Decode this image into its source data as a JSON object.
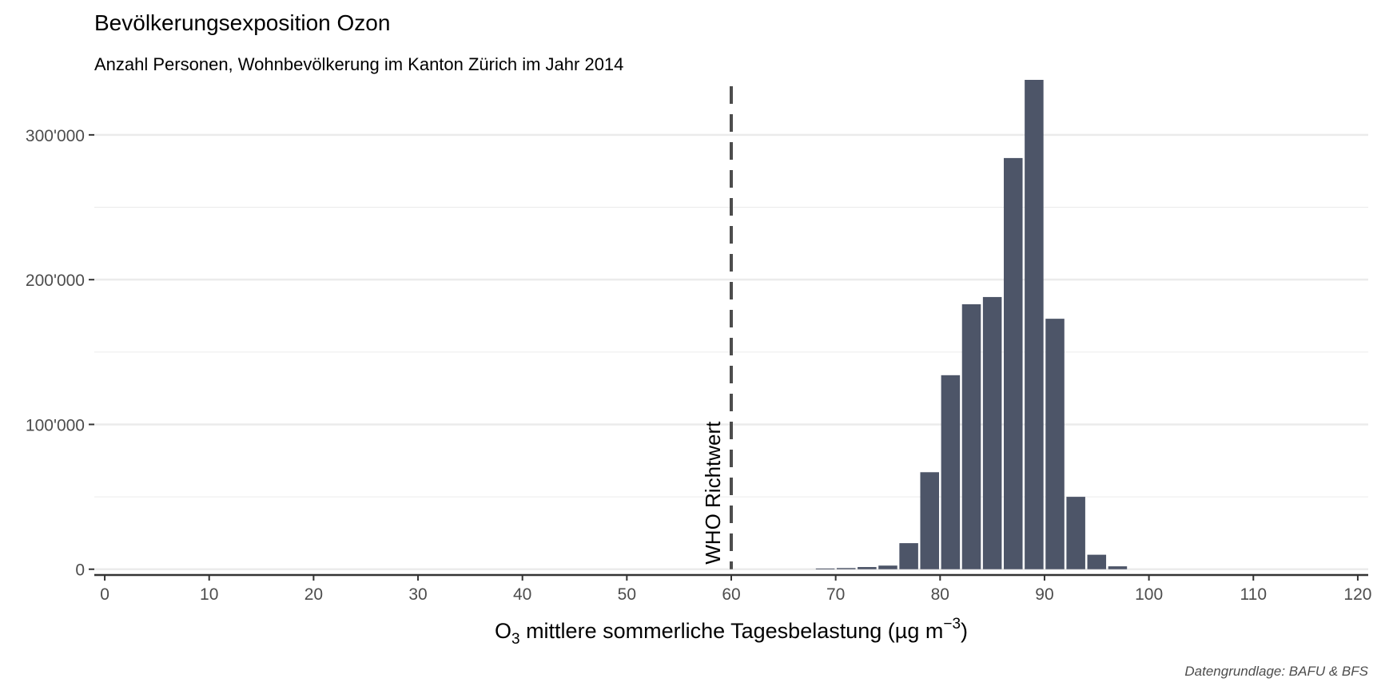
{
  "chart_data": {
    "type": "bar",
    "title": "Bevölkerungsexposition Ozon",
    "subtitle": "Anzahl Personen, Wohnbevölkerung im Kanton Zürich im Jahr 2014",
    "xlabel": {
      "main": "O",
      "sub": "3",
      "rest": " mittlere sommerliche Tagesbelastung (µg m",
      "sup": "−3",
      "close": ")"
    },
    "caption": "Datengrundlage: BAFU & BFS",
    "xlim": [
      -1,
      121
    ],
    "ylim": [
      -4000,
      338000
    ],
    "bin_width": 2,
    "x_ticks": [
      {
        "value": 0,
        "label": "0"
      },
      {
        "value": 10,
        "label": "10"
      },
      {
        "value": 20,
        "label": "20"
      },
      {
        "value": 30,
        "label": "30"
      },
      {
        "value": 40,
        "label": "40"
      },
      {
        "value": 50,
        "label": "50"
      },
      {
        "value": 60,
        "label": "60"
      },
      {
        "value": 70,
        "label": "70"
      },
      {
        "value": 80,
        "label": "80"
      },
      {
        "value": 90,
        "label": "90"
      },
      {
        "value": 100,
        "label": "100"
      },
      {
        "value": 110,
        "label": "110"
      },
      {
        "value": 120,
        "label": "120"
      }
    ],
    "y_ticks": [
      {
        "value": 0,
        "label": "0"
      },
      {
        "value": 100000,
        "label": "100'000"
      },
      {
        "value": 200000,
        "label": "200'000"
      },
      {
        "value": 300000,
        "label": "300'000"
      }
    ],
    "y_minor_ticks": [
      50000,
      150000,
      250000
    ],
    "bars": [
      {
        "x": 69,
        "y": 500
      },
      {
        "x": 71,
        "y": 800
      },
      {
        "x": 73,
        "y": 1500
      },
      {
        "x": 75,
        "y": 2500
      },
      {
        "x": 77,
        "y": 18000
      },
      {
        "x": 79,
        "y": 67000
      },
      {
        "x": 81,
        "y": 134000
      },
      {
        "x": 83,
        "y": 183000
      },
      {
        "x": 85,
        "y": 188000
      },
      {
        "x": 87,
        "y": 284000
      },
      {
        "x": 89,
        "y": 338000
      },
      {
        "x": 91,
        "y": 173000
      },
      {
        "x": 93,
        "y": 50000
      },
      {
        "x": 95,
        "y": 10000
      },
      {
        "x": 97,
        "y": 2000
      }
    ],
    "reference_line": {
      "x": 60,
      "label": "WHO Richtwert"
    },
    "colors": {
      "bar": "#4d5568",
      "grid": "#ebebeb",
      "axis": "#333333",
      "reference": "#4d4d4d"
    }
  }
}
